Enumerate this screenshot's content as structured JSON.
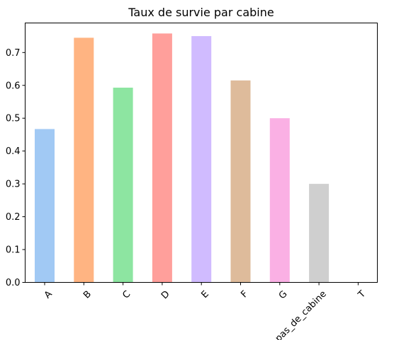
{
  "chart_data": {
    "type": "bar",
    "title": "Taux de survie par cabine",
    "xlabel": "",
    "ylabel": "",
    "categories": [
      "A",
      "B",
      "C",
      "D",
      "E",
      "F",
      "G",
      "pas_de_cabine",
      "T"
    ],
    "values": [
      0.467,
      0.745,
      0.593,
      0.758,
      0.75,
      0.615,
      0.5,
      0.3,
      0.0
    ],
    "colors": [
      "#a1c9f4",
      "#ffb482",
      "#8de5a1",
      "#ff9f9b",
      "#d0bbff",
      "#debb9b",
      "#fab0e4",
      "#cfcfcf",
      "#fffea3"
    ],
    "ylim": [
      0,
      0.79
    ],
    "yticks": [
      0.0,
      0.1,
      0.2,
      0.3,
      0.4,
      0.5,
      0.6,
      0.7
    ],
    "ytick_labels": [
      "0.0",
      "0.1",
      "0.2",
      "0.3",
      "0.4",
      "0.5",
      "0.6",
      "0.7"
    ],
    "grid": false,
    "legend": "none"
  }
}
